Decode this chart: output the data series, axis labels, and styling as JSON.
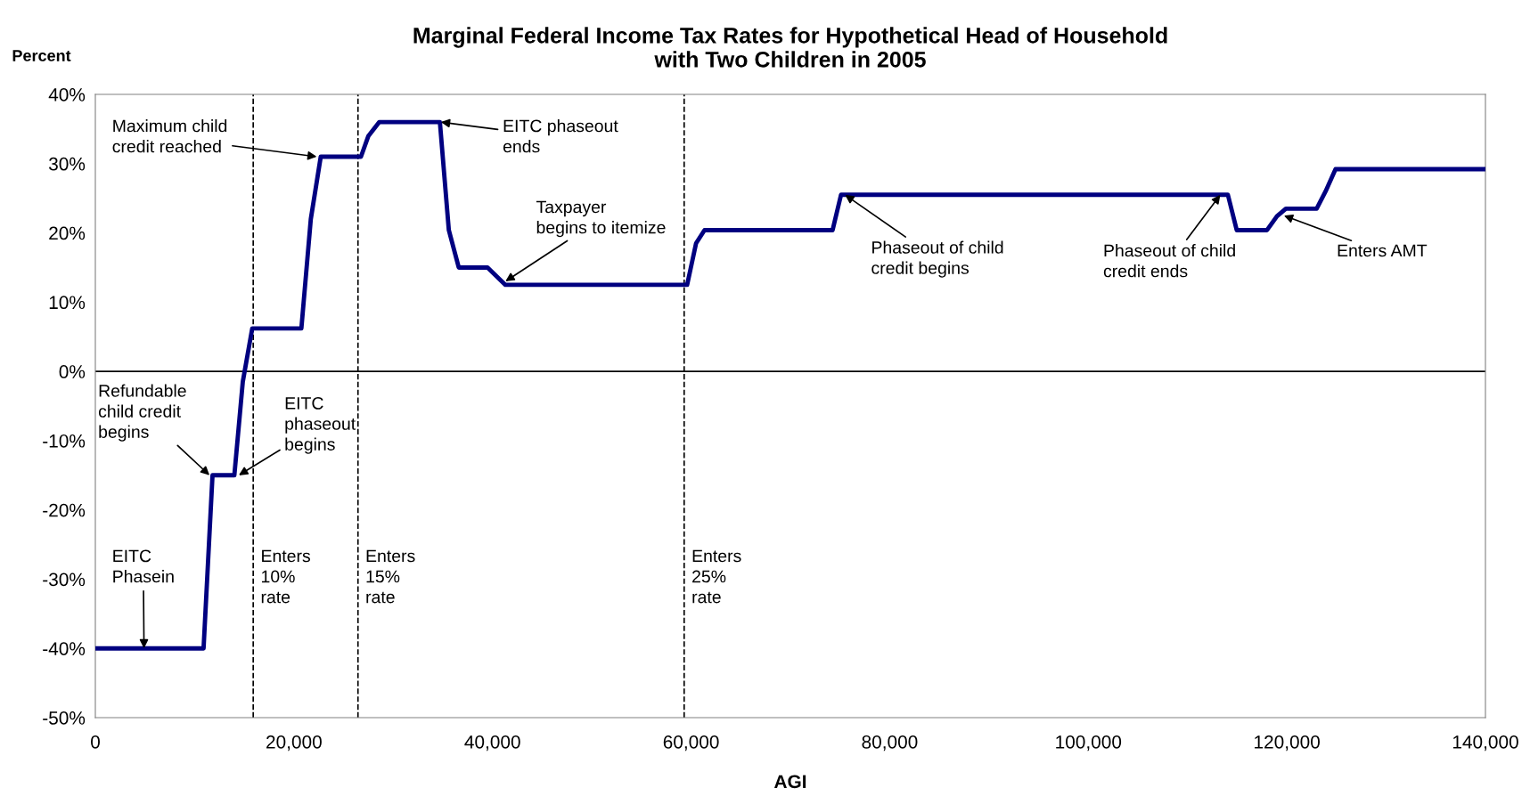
{
  "chart_data": {
    "type": "line",
    "title": "Marginal Federal Income Tax Rates for Hypothetical Head of Household\nwith Two Children in 2005",
    "ylabel": "Percent",
    "xlabel": "AGI",
    "series": [
      {
        "color": "#000080",
        "x": [
          0,
          10900,
          11800,
          14000,
          14850,
          15800,
          20750,
          21700,
          22700,
          26750,
          27500,
          28600,
          34700,
          35600,
          36600,
          39500,
          41300,
          59600,
          60500,
          61350,
          74250,
          75100,
          114060,
          114950,
          118000,
          119000,
          119900,
          123000,
          123900,
          124900,
          139800
        ],
        "values": [
          -40,
          -40,
          -15,
          -15,
          -1.5,
          6.2,
          6.2,
          22,
          31,
          31,
          34,
          36,
          36,
          20.4,
          15,
          15,
          12.5,
          12.5,
          18.5,
          20.4,
          20.4,
          25.5,
          25.5,
          20.4,
          20.4,
          22.4,
          23.5,
          23.5,
          26,
          29.2,
          29.2
        ]
      }
    ],
    "xlim": [
      0,
      140000
    ],
    "ylim": [
      -50,
      40
    ],
    "xticks": [
      {
        "value": 0,
        "label": "0"
      },
      {
        "value": 20000,
        "label": "20,000"
      },
      {
        "value": 40000,
        "label": "40,000"
      },
      {
        "value": 60000,
        "label": "60,000"
      },
      {
        "value": 80000,
        "label": "80,000"
      },
      {
        "value": 100000,
        "label": "100,000"
      },
      {
        "value": 120000,
        "label": "120,000"
      },
      {
        "value": 140000,
        "label": "140,000"
      }
    ],
    "yticks": [
      {
        "value": -50,
        "label": "-50%"
      },
      {
        "value": -40,
        "label": "-40%"
      },
      {
        "value": -30,
        "label": "-30%"
      },
      {
        "value": -20,
        "label": "-20%"
      },
      {
        "value": -10,
        "label": "-10%"
      },
      {
        "value": 0,
        "label": "0%"
      },
      {
        "value": 10,
        "label": "10%"
      },
      {
        "value": 20,
        "label": "20%"
      },
      {
        "value": 30,
        "label": "30%"
      },
      {
        "value": 40,
        "label": "40%"
      }
    ],
    "ref_lines": [
      {
        "axis": "x",
        "value": 15900,
        "label": "Enters\n10%\nrate",
        "color": "#000000",
        "line_style": "dashed"
      },
      {
        "axis": "x",
        "value": 26450,
        "label": "Enters\n15%\nrate",
        "color": "#000000",
        "line_style": "dashed"
      },
      {
        "axis": "x",
        "value": 59300,
        "label": "Enters\n25%\nrate",
        "color": "#000000",
        "line_style": "dashed"
      },
      {
        "axis": "y",
        "value": 0,
        "color": "#000000",
        "line_style": "solid"
      }
    ],
    "annotations": [
      {
        "text": "Maximum child\ncredit reached",
        "x": 22300,
        "y": 31
      },
      {
        "text": "EITC phaseout\nends",
        "x": 34800,
        "y": 36
      },
      {
        "text": "Taxpayer\nbegins to itemize",
        "x": 41300,
        "y": 13
      },
      {
        "text": "Phaseout of child\ncredit begins",
        "x": 75500,
        "y": 25.5
      },
      {
        "text": "Phaseout of child\ncredit ends",
        "x": 113300,
        "y": 25.5
      },
      {
        "text": "Enters AMT",
        "x": 119700,
        "y": 22.5
      },
      {
        "text": "Refundable\nchild credit\nbegins",
        "x": 11500,
        "y": -15
      },
      {
        "text": "EITC\nphaseout\nbegins",
        "x": 14450,
        "y": -15
      },
      {
        "text": "EITC\nPhasein",
        "x": 4900,
        "y": -40
      }
    ],
    "grid": false,
    "legend": false,
    "marker": "none",
    "line_style": "solid"
  }
}
